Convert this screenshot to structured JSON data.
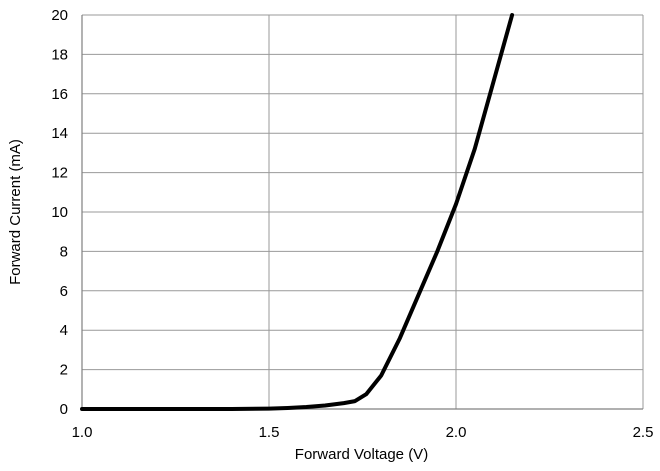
{
  "chart_data": {
    "type": "line",
    "title": "",
    "xlabel": "Forward Voltage (V)",
    "ylabel": "Forward Current (mA)",
    "xlim": [
      1.0,
      2.5
    ],
    "ylim": [
      0,
      20
    ],
    "x_ticks": [
      1.0,
      1.5,
      2.0,
      2.5
    ],
    "x_tick_labels": [
      "1.0",
      "1.5",
      "2.0",
      "2.5"
    ],
    "y_ticks": [
      0,
      2,
      4,
      6,
      8,
      10,
      12,
      14,
      16,
      18,
      20
    ],
    "y_tick_labels": [
      "0",
      "2",
      "4",
      "6",
      "8",
      "10",
      "12",
      "14",
      "16",
      "18",
      "20"
    ],
    "grid": true,
    "legend": "none",
    "series": [
      {
        "color": "#000000",
        "x": [
          1.0,
          1.2,
          1.4,
          1.5,
          1.55,
          1.6,
          1.65,
          1.7,
          1.73,
          1.76,
          1.8,
          1.85,
          1.9,
          1.95,
          2.0,
          2.05,
          2.1,
          2.15
        ],
        "y": [
          0.0,
          0.0,
          0.0,
          0.02,
          0.05,
          0.1,
          0.18,
          0.3,
          0.4,
          0.75,
          1.7,
          3.6,
          5.8,
          8.0,
          10.4,
          13.2,
          16.6,
          20.0
        ]
      }
    ]
  },
  "colors": {
    "background": "#ffffff",
    "grid": "#999999",
    "axis": "#808080",
    "line": "#000000"
  }
}
